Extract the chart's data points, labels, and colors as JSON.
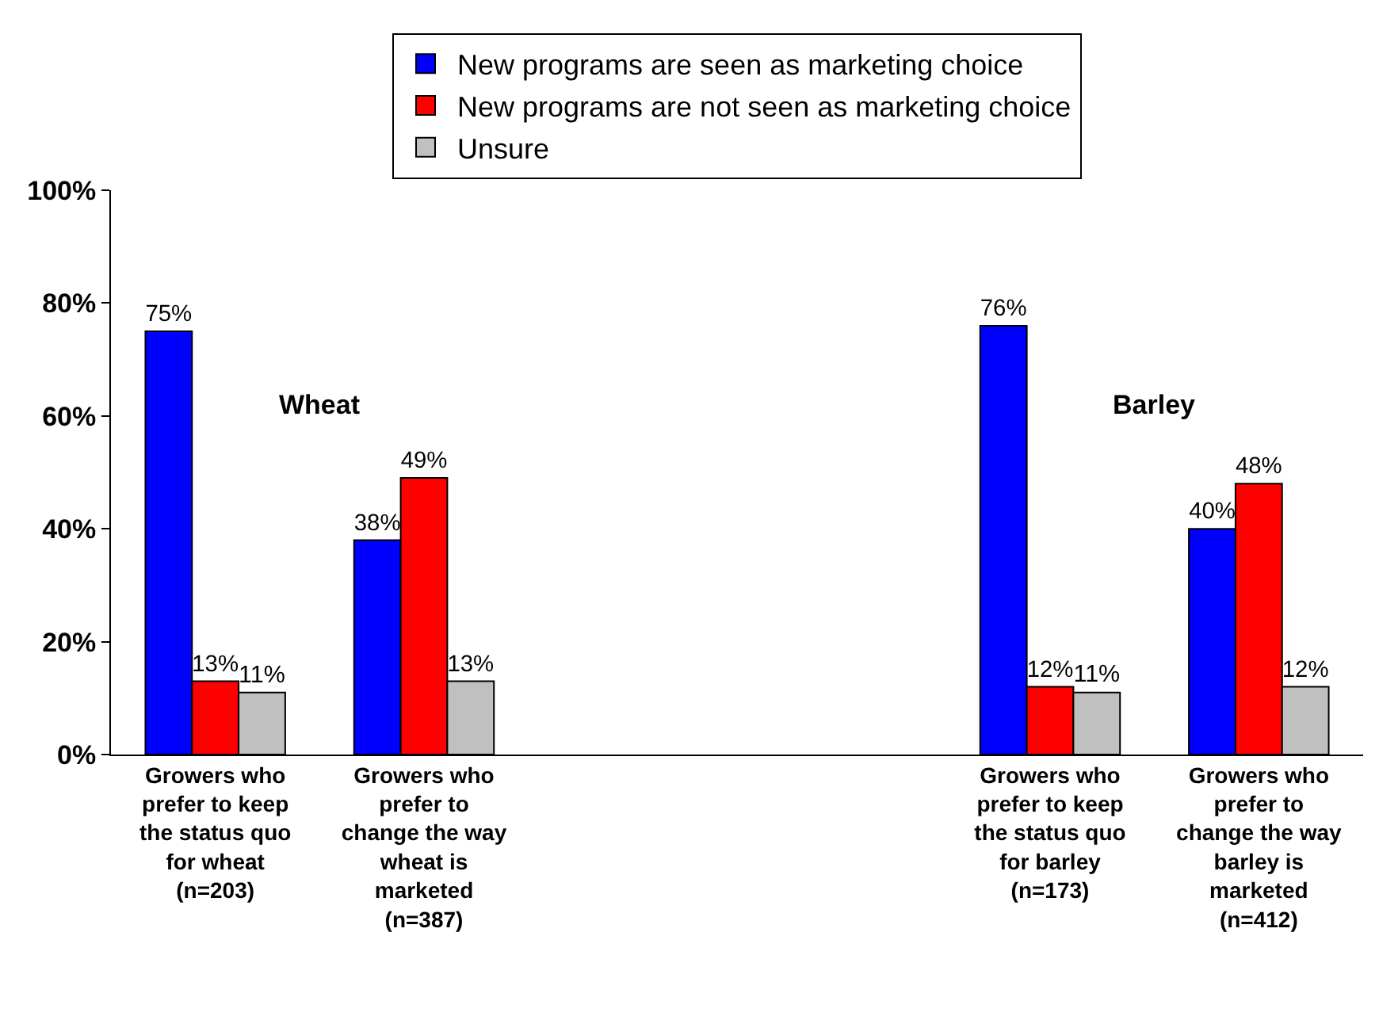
{
  "chart_data": {
    "type": "bar",
    "categories": [
      "Growers who\nprefer to keep\nthe status quo\nfor wheat\n(n=203)",
      "Growers who\nprefer to\nchange the way\nwheat is\nmarketed\n(n=387)",
      null,
      null,
      "Growers who\nprefer to keep\nthe status quo\nfor barley\n(n=173)",
      "Growers who\nprefer to\nchange the way\nbarley is\nmarketed\n(n=412)"
    ],
    "series": [
      {
        "name": "New programs are seen as marketing choice",
        "color": "#0000ff",
        "values": [
          75,
          38,
          null,
          null,
          76,
          40
        ],
        "value_labels": [
          "75%",
          "38%",
          null,
          null,
          "76%",
          "40%"
        ]
      },
      {
        "name": "New programs are not seen as marketing choice",
        "color": "#ff0000",
        "values": [
          13,
          49,
          null,
          null,
          12,
          48
        ],
        "value_labels": [
          "13%",
          "49%",
          null,
          null,
          "12%",
          "48%"
        ]
      },
      {
        "name": "Unsure",
        "color": "#c0c0c0",
        "values": [
          11,
          13,
          null,
          null,
          11,
          12
        ],
        "value_labels": [
          "11%",
          "13%",
          null,
          null,
          "11%",
          "12%"
        ]
      }
    ],
    "ylim": [
      0,
      100
    ],
    "yticks": [
      {
        "value": 0,
        "label": "0%"
      },
      {
        "value": 20,
        "label": "20%"
      },
      {
        "value": 40,
        "label": "40%"
      },
      {
        "value": 60,
        "label": "60%"
      },
      {
        "value": 80,
        "label": "80%"
      },
      {
        "value": 100,
        "label": "100%"
      }
    ],
    "annotations": [
      "Wheat",
      "Barley"
    ],
    "legend": "top"
  }
}
